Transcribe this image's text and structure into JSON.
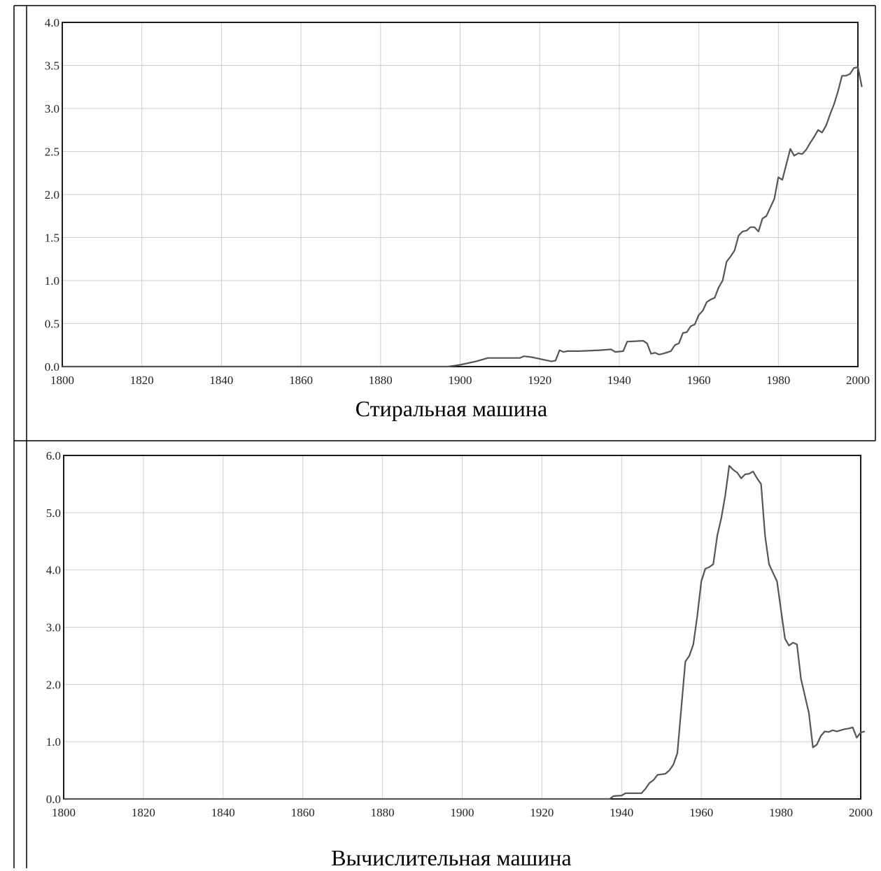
{
  "chart_data": [
    {
      "type": "line",
      "title": "Стиральная машина",
      "xlabel": "",
      "ylabel": "",
      "xlim": [
        1800,
        2000
      ],
      "ylim": [
        0,
        4
      ],
      "x_ticks": [
        "1800",
        "1820",
        "1840",
        "1860",
        "1880",
        "1900",
        "1920",
        "1940",
        "1960",
        "1980",
        "2000"
      ],
      "y_ticks": [
        "0.0",
        "0.5",
        "1.0",
        "1.5",
        "2.0",
        "2.5",
        "3.0",
        "3.5",
        "4.0"
      ],
      "grid": true,
      "series": [
        {
          "color": "#555555",
          "points": [
            [
              1800,
              0
            ],
            [
              1897,
              0
            ],
            [
              1900,
              0.02
            ],
            [
              1904,
              0.06
            ],
            [
              1907,
              0.1
            ],
            [
              1915,
              0.1
            ],
            [
              1916,
              0.12
            ],
            [
              1918,
              0.11
            ],
            [
              1921,
              0.08
            ],
            [
              1923,
              0.06
            ],
            [
              1924,
              0.07
            ],
            [
              1925,
              0.19
            ],
            [
              1926,
              0.17
            ],
            [
              1927,
              0.18
            ],
            [
              1930,
              0.18
            ],
            [
              1935,
              0.19
            ],
            [
              1938,
              0.2
            ],
            [
              1939,
              0.17
            ],
            [
              1941,
              0.18
            ],
            [
              1942,
              0.29
            ],
            [
              1946,
              0.3
            ],
            [
              1947,
              0.27
            ],
            [
              1948,
              0.15
            ],
            [
              1949,
              0.16
            ],
            [
              1950,
              0.14
            ],
            [
              1951,
              0.15
            ],
            [
              1953,
              0.18
            ],
            [
              1954,
              0.25
            ],
            [
              1955,
              0.27
            ],
            [
              1956,
              0.39
            ],
            [
              1957,
              0.4
            ],
            [
              1958,
              0.47
            ],
            [
              1959,
              0.49
            ],
            [
              1960,
              0.6
            ],
            [
              1961,
              0.65
            ],
            [
              1962,
              0.75
            ],
            [
              1963,
              0.78
            ],
            [
              1964,
              0.8
            ],
            [
              1965,
              0.92
            ],
            [
              1966,
              1.0
            ],
            [
              1967,
              1.22
            ],
            [
              1968,
              1.28
            ],
            [
              1969,
              1.35
            ],
            [
              1970,
              1.52
            ],
            [
              1971,
              1.57
            ],
            [
              1972,
              1.58
            ],
            [
              1973,
              1.62
            ],
            [
              1974,
              1.62
            ],
            [
              1975,
              1.57
            ],
            [
              1976,
              1.72
            ],
            [
              1977,
              1.75
            ],
            [
              1978,
              1.85
            ],
            [
              1979,
              1.95
            ],
            [
              1980,
              2.2
            ],
            [
              1981,
              2.17
            ],
            [
              1982,
              2.35
            ],
            [
              1983,
              2.53
            ],
            [
              1984,
              2.45
            ],
            [
              1985,
              2.48
            ],
            [
              1986,
              2.47
            ],
            [
              1987,
              2.52
            ],
            [
              1988,
              2.6
            ],
            [
              1989,
              2.67
            ],
            [
              1990,
              2.75
            ],
            [
              1991,
              2.72
            ],
            [
              1992,
              2.8
            ],
            [
              1993,
              2.93
            ],
            [
              1994,
              3.05
            ],
            [
              1995,
              3.2
            ],
            [
              1996,
              3.38
            ],
            [
              1997,
              3.38
            ],
            [
              1998,
              3.4
            ],
            [
              1999,
              3.47
            ],
            [
              2000,
              3.48
            ],
            [
              2001,
              3.25
            ]
          ]
        }
      ]
    },
    {
      "type": "line",
      "title": "Вычислительная машина",
      "xlabel": "",
      "ylabel": "",
      "xlim": [
        1800,
        2000
      ],
      "ylim": [
        0,
        6
      ],
      "x_ticks": [
        "1800",
        "1820",
        "1840",
        "1860",
        "1880",
        "1900",
        "1920",
        "1940",
        "1960",
        "1980",
        "2000"
      ],
      "y_ticks": [
        "0.0",
        "1.0",
        "2.0",
        "3.0",
        "4.0",
        "5.0",
        "6.0"
      ],
      "grid": true,
      "series": [
        {
          "color": "#555555",
          "points": [
            [
              1800,
              0
            ],
            [
              1937,
              0
            ],
            [
              1938,
              0.05
            ],
            [
              1940,
              0.06
            ],
            [
              1941,
              0.1
            ],
            [
              1945,
              0.1
            ],
            [
              1946,
              0.18
            ],
            [
              1947,
              0.28
            ],
            [
              1948,
              0.33
            ],
            [
              1949,
              0.42
            ],
            [
              1950,
              0.43
            ],
            [
              1951,
              0.44
            ],
            [
              1952,
              0.5
            ],
            [
              1953,
              0.6
            ],
            [
              1954,
              0.8
            ],
            [
              1955,
              1.6
            ],
            [
              1956,
              2.4
            ],
            [
              1957,
              2.5
            ],
            [
              1958,
              2.7
            ],
            [
              1959,
              3.2
            ],
            [
              1960,
              3.8
            ],
            [
              1961,
              4.02
            ],
            [
              1962,
              4.05
            ],
            [
              1963,
              4.1
            ],
            [
              1964,
              4.6
            ],
            [
              1965,
              4.9
            ],
            [
              1966,
              5.3
            ],
            [
              1967,
              5.82
            ],
            [
              1968,
              5.75
            ],
            [
              1969,
              5.7
            ],
            [
              1970,
              5.6
            ],
            [
              1971,
              5.67
            ],
            [
              1972,
              5.68
            ],
            [
              1973,
              5.72
            ],
            [
              1974,
              5.6
            ],
            [
              1975,
              5.5
            ],
            [
              1976,
              4.6
            ],
            [
              1977,
              4.1
            ],
            [
              1978,
              3.95
            ],
            [
              1979,
              3.8
            ],
            [
              1980,
              3.3
            ],
            [
              1981,
              2.8
            ],
            [
              1982,
              2.68
            ],
            [
              1983,
              2.73
            ],
            [
              1984,
              2.7
            ],
            [
              1985,
              2.1
            ],
            [
              1986,
              1.8
            ],
            [
              1987,
              1.5
            ],
            [
              1988,
              0.9
            ],
            [
              1989,
              0.95
            ],
            [
              1990,
              1.1
            ],
            [
              1991,
              1.18
            ],
            [
              1992,
              1.17
            ],
            [
              1993,
              1.2
            ],
            [
              1994,
              1.18
            ],
            [
              1995,
              1.2
            ],
            [
              1996,
              1.22
            ],
            [
              1997,
              1.23
            ],
            [
              1998,
              1.25
            ],
            [
              1999,
              1.07
            ],
            [
              2000,
              1.16
            ],
            [
              2001,
              1.18
            ]
          ]
        }
      ]
    }
  ]
}
